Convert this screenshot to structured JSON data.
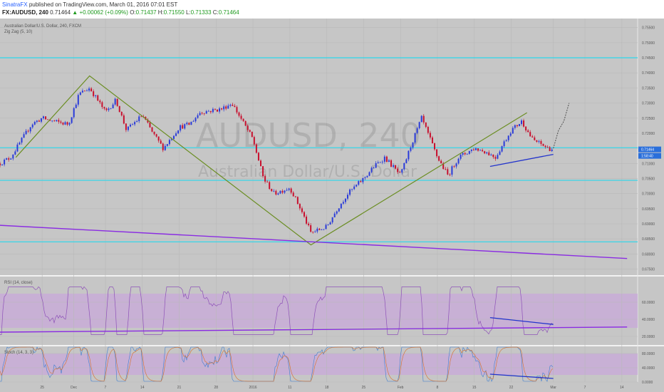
{
  "header": {
    "author": "SinatraFX",
    "published_text": "published on TradingView.com, March 01, 2016 07:01 EST",
    "symbol_interval": "FX:AUDUSD, 240",
    "last_price": "0.71464",
    "change": "+0.00062 (+0.09%)",
    "o_label": "O:",
    "o_value": "0.71437",
    "h_label": "H:",
    "h_value": "0.71550",
    "l_label": "L:",
    "l_value": "0.71333",
    "c_label": "C:",
    "c_value": "0.71464"
  },
  "legend": {
    "series_title": "Australian Dollar/U.S. Dollar, 240, FXCM",
    "indicator": "Zig Zag (5, 10)"
  },
  "watermark": {
    "symbol": "AUDUSD, 240",
    "description": "Australian Dollar/U.S. Dollar"
  },
  "colors": {
    "up_candle": "#2a3bd9",
    "down_candle": "#c8102e",
    "support_line": "#38d6e8",
    "zigzag": "#6b8e23",
    "trendline": "#8a2be2",
    "divergence": "#2233cc",
    "indicator_line": "#8e52b8",
    "stoch_k": "#3f7fd0",
    "stoch_d": "#d7702a",
    "band": "#c9a6dc"
  },
  "chart_data": [
    {
      "type": "candlestick",
      "title": "Australian Dollar/U.S. Dollar, 240, FXCM",
      "ylim": [
        0.673,
        0.758
      ],
      "price_ticks": [
        "0.75500",
        "0.75000",
        "0.74500",
        "0.74000",
        "0.73500",
        "0.73000",
        "0.72500",
        "0.72000",
        "0.71500",
        "0.71000",
        "0.70500",
        "0.70000",
        "0.69500",
        "0.69000",
        "0.68500",
        "0.68000",
        "0.67500"
      ],
      "x_ticks": [
        "25",
        "Dec",
        "7",
        "14",
        "21",
        "28",
        "2016",
        "11",
        "18",
        "25",
        "Feb",
        "8",
        "15",
        "22",
        "Mar",
        "7",
        "14"
      ],
      "current_price_tag": "0.71464",
      "countdown_tag": "1:58:40",
      "horizontal_levels": [
        0.745,
        0.7152,
        0.7044,
        0.684
      ],
      "zigzag": [
        {
          "date": "2015-11-20",
          "price": 0.712
        },
        {
          "date": "2015-12-04",
          "price": 0.739
        },
        {
          "date": "2016-01-15",
          "price": 0.683
        },
        {
          "date": "2016-02-25",
          "price": 0.7268
        }
      ],
      "trendline": [
        {
          "date": "2015-11-17",
          "price": 0.6895
        },
        {
          "date": "2016-03-15",
          "price": 0.6785
        }
      ],
      "divergence_line": [
        {
          "date": "2016-02-18",
          "price": 0.709
        },
        {
          "date": "2016-03-01",
          "price": 0.713
        }
      ],
      "series": [
        {
          "name": "AUDUSD",
          "path": [
            [
              "2015-11-17",
              0.71
            ],
            [
              "2015-11-19",
              0.712
            ],
            [
              "2015-11-23",
              0.723
            ],
            [
              "2015-11-25",
              0.725
            ],
            [
              "2015-11-27",
              0.724
            ],
            [
              "2015-11-30",
              0.723
            ],
            [
              "2015-12-02",
              0.733
            ],
            [
              "2015-12-04",
              0.735
            ],
            [
              "2015-12-07",
              0.727
            ],
            [
              "2015-12-09",
              0.731
            ],
            [
              "2015-12-11",
              0.721
            ],
            [
              "2015-12-14",
              0.726
            ],
            [
              "2015-12-16",
              0.72
            ],
            [
              "2015-12-18",
              0.715
            ],
            [
              "2015-12-21",
              0.722
            ],
            [
              "2015-12-23",
              0.723
            ],
            [
              "2015-12-25",
              0.727
            ],
            [
              "2015-12-29",
              0.728
            ],
            [
              "2015-12-31",
              0.73
            ],
            [
              "2016-01-04",
              0.718
            ],
            [
              "2016-01-06",
              0.705
            ],
            [
              "2016-01-08",
              0.7
            ],
            [
              "2016-01-11",
              0.702
            ],
            [
              "2016-01-13",
              0.695
            ],
            [
              "2016-01-15",
              0.687
            ],
            [
              "2016-01-18",
              0.689
            ],
            [
              "2016-01-20",
              0.695
            ],
            [
              "2016-01-22",
              0.7
            ],
            [
              "2016-01-25",
              0.705
            ],
            [
              "2016-01-27",
              0.709
            ],
            [
              "2016-01-29",
              0.712
            ],
            [
              "2016-02-01",
              0.706
            ],
            [
              "2016-02-03",
              0.716
            ],
            [
              "2016-02-05",
              0.725
            ],
            [
              "2016-02-08",
              0.712
            ],
            [
              "2016-02-10",
              0.706
            ],
            [
              "2016-02-12",
              0.712
            ],
            [
              "2016-02-15",
              0.715
            ],
            [
              "2016-02-17",
              0.714
            ],
            [
              "2016-02-19",
              0.712
            ],
            [
              "2016-02-22",
              0.721
            ],
            [
              "2016-02-24",
              0.724
            ],
            [
              "2016-02-26",
              0.718
            ],
            [
              "2016-02-29",
              0.715
            ],
            [
              "2016-03-01",
              0.7146
            ]
          ]
        }
      ],
      "projection": [
        {
          "date": "2016-03-01",
          "price": 0.715
        },
        {
          "date": "2016-03-02",
          "price": 0.721
        },
        {
          "date": "2016-03-03",
          "price": 0.724
        },
        {
          "date": "2016-03-04",
          "price": 0.73
        }
      ]
    },
    {
      "type": "line",
      "title": "RSI (14, close)",
      "ylim": [
        10,
        90
      ],
      "y_ticks": [
        "60.0000",
        "40.0000",
        "20.0000"
      ],
      "band": [
        30,
        70
      ],
      "trendline": [
        {
          "date": "2015-11-17",
          "rsi": 25
        },
        {
          "date": "2016-03-15",
          "rsi": 31
        }
      ],
      "divergence_line": [
        {
          "date": "2016-02-18",
          "rsi": 42
        },
        {
          "date": "2016-03-01",
          "rsi": 34
        }
      ]
    },
    {
      "type": "line",
      "title": "Stoch (14, 3, 3)",
      "ylim": [
        0,
        100
      ],
      "y_ticks": [
        "80.0000",
        "40.0000",
        "0.0000"
      ],
      "band": [
        20,
        80
      ],
      "divergence_line": [
        {
          "date": "2016-02-18",
          "stoch": 22
        },
        {
          "date": "2016-03-01",
          "stoch": 10
        }
      ]
    }
  ]
}
